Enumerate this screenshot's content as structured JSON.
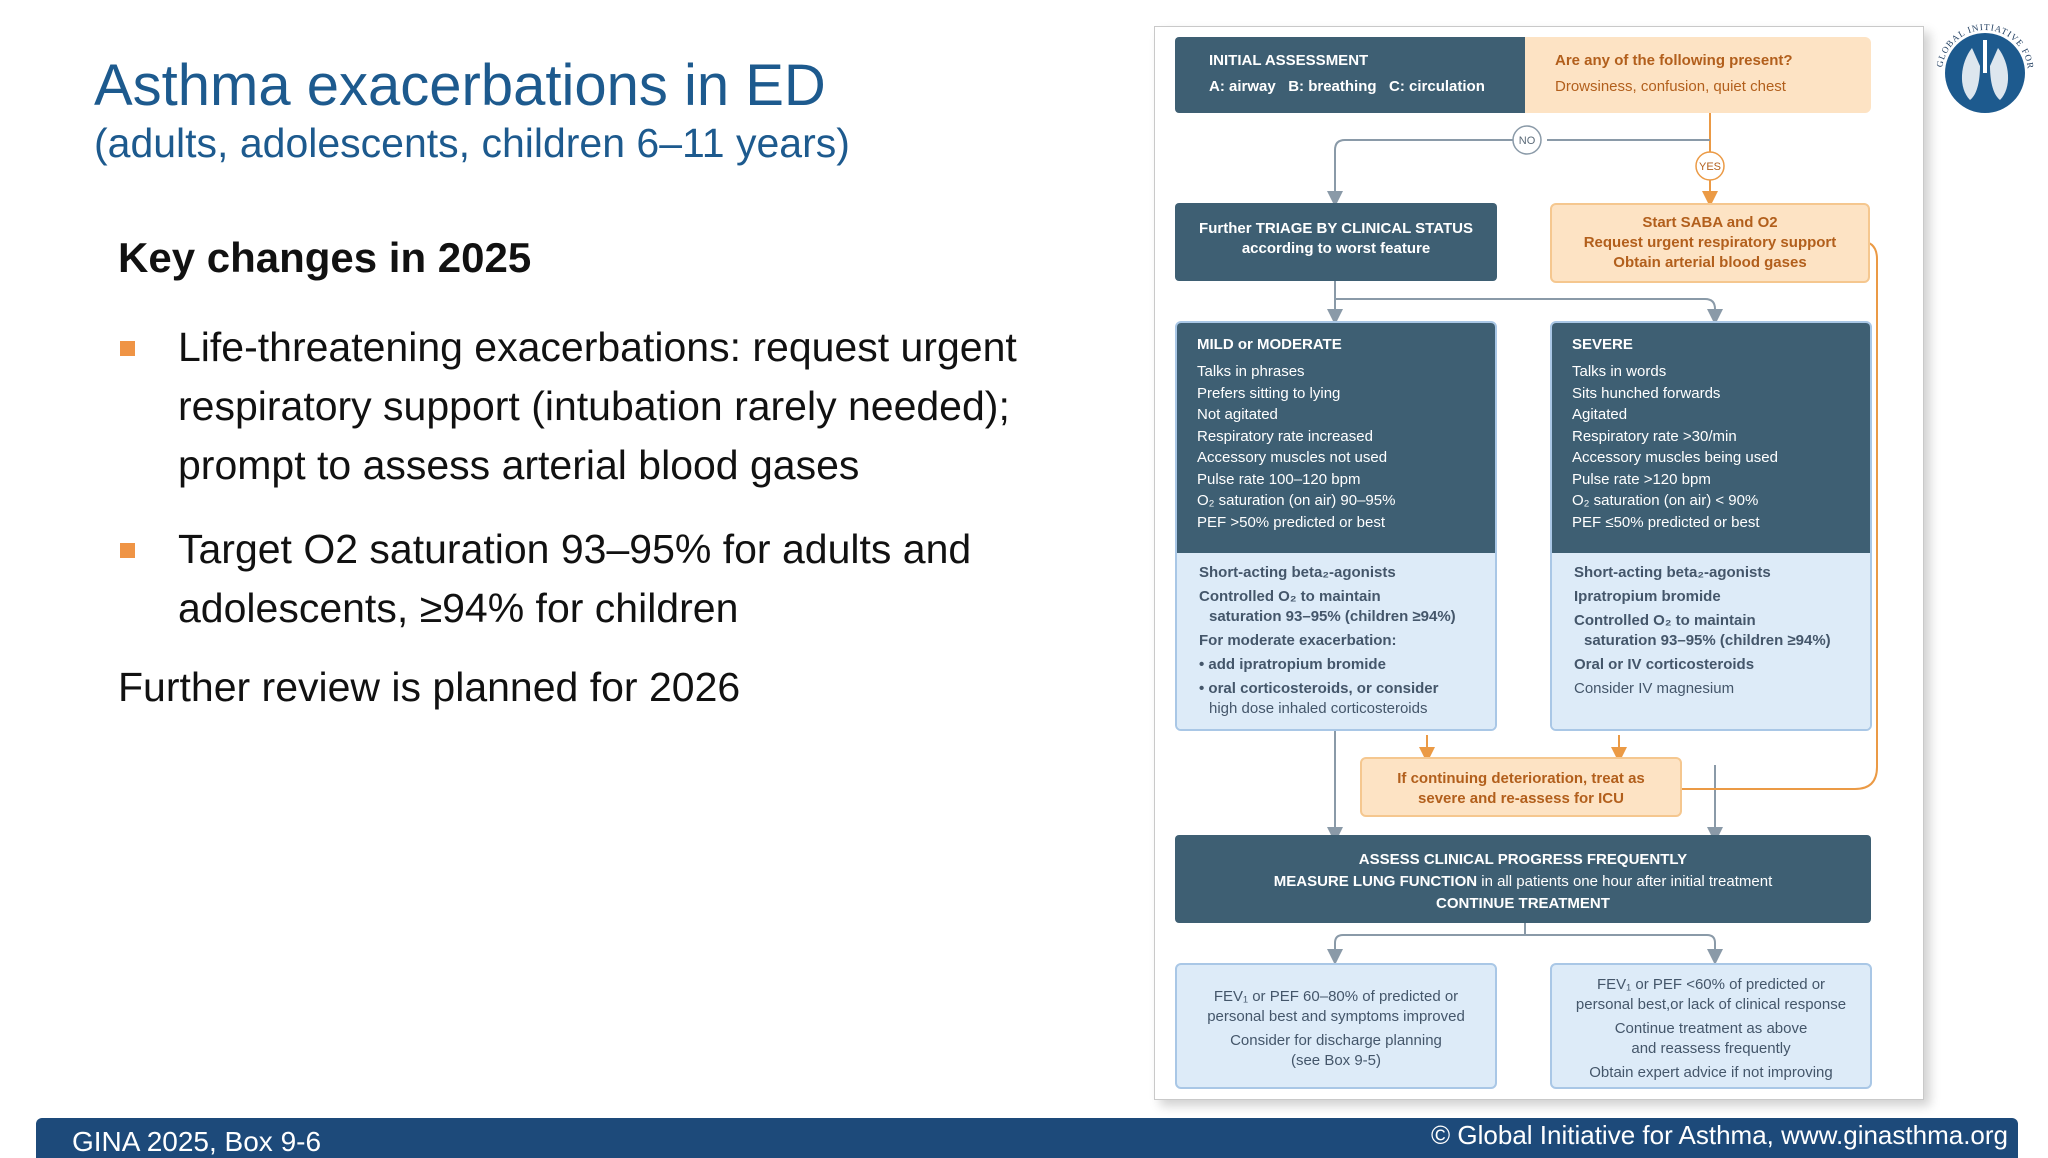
{
  "slide": {
    "title": "Asthma exacerbations in ED",
    "subtitle": "(adults, adolescents, children 6–11 years)",
    "key_heading": "Key changes in 2025",
    "bullets": [
      "Life-threatening exacerbations: request urgent respiratory support (intubation rarely needed); prompt to assess arterial blood gases",
      "Target O2 saturation 93–95% for adults and adolescents, ≥94% for children"
    ],
    "further": "Further review is planned for 2026",
    "footer_left": "GINA 2025, Box 9-6",
    "footer_right": "© Global Initiative for Asthma, www.ginasthma.org",
    "accent_color": "#ef9445",
    "title_color": "#1d5a8e",
    "footer_color": "#1d4a7a"
  },
  "logo": {
    "text": "GLOBAL INITIATIVE FOR ASTHMA",
    "icon": "lungs-globe-icon"
  },
  "diagram": {
    "initial": {
      "title": "INITIAL ASSESSMENT",
      "items": "A: airway   B: breathing   C: circulation"
    },
    "question": {
      "title": "Are any of the following present?",
      "items": "Drowsiness, confusion, quiet chest"
    },
    "no_label": "NO",
    "yes_label": "YES",
    "triage": {
      "line1": "Further TRIAGE BY CLINICAL STATUS",
      "line2": "according to worst feature"
    },
    "saba": {
      "line1": "Start SABA and O2",
      "line2": "Request urgent respiratory support",
      "line3": "Obtain arterial blood gases"
    },
    "mild": {
      "title": "MILD or MODERATE",
      "features": [
        "Talks in phrases",
        "Prefers sitting to lying",
        "Not agitated",
        "Respiratory rate increased",
        "Accessory muscles not used",
        "Pulse rate 100–120 bpm",
        "O₂ saturation (on air) 90–95%",
        "PEF >50% predicted or best"
      ],
      "treatment": [
        "Short-acting beta₂-agonists",
        "Controlled O₂ to maintain",
        "saturation 93–95% (children ≥94%)",
        "For moderate exacerbation:",
        "• add ipratropium bromide",
        "• oral corticosteroids, or consider",
        "high dose inhaled corticosteroids"
      ]
    },
    "severe": {
      "title": "SEVERE",
      "features": [
        "Talks in words",
        "Sits hunched forwards",
        "Agitated",
        "Respiratory rate >30/min",
        "Accessory muscles being used",
        "Pulse rate >120 bpm",
        "O₂ saturation (on air) < 90%",
        "PEF ≤50% predicted or best"
      ],
      "treatment": [
        "Short-acting beta₂-agonists",
        "Ipratropium bromide",
        "Controlled O₂ to maintain",
        "saturation 93–95% (children ≥94%)",
        "Oral or IV corticosteroids",
        "Consider IV magnesium"
      ]
    },
    "deterioration": {
      "line1": "If continuing deterioration, treat as",
      "line2": "severe and re-assess for ICU"
    },
    "assess": {
      "line1": "ASSESS CLINICAL PROGRESS FREQUENTLY",
      "line2_bold": "MEASURE LUNG FUNCTION",
      "line2_rest": " in all patients one hour after initial treatment",
      "line3": "CONTINUE TREATMENT"
    },
    "outcome_good": [
      "FEV₁ or PEF 60–80% of predicted or",
      "personal best and symptoms improved",
      "Consider for discharge planning",
      "(see Box 9-5)"
    ],
    "outcome_poor": [
      "FEV₁ or PEF <60% of predicted or",
      "personal best,or lack of clinical response",
      "Continue treatment as above",
      "and reassess frequently",
      "Obtain expert advice if not improving"
    ]
  }
}
